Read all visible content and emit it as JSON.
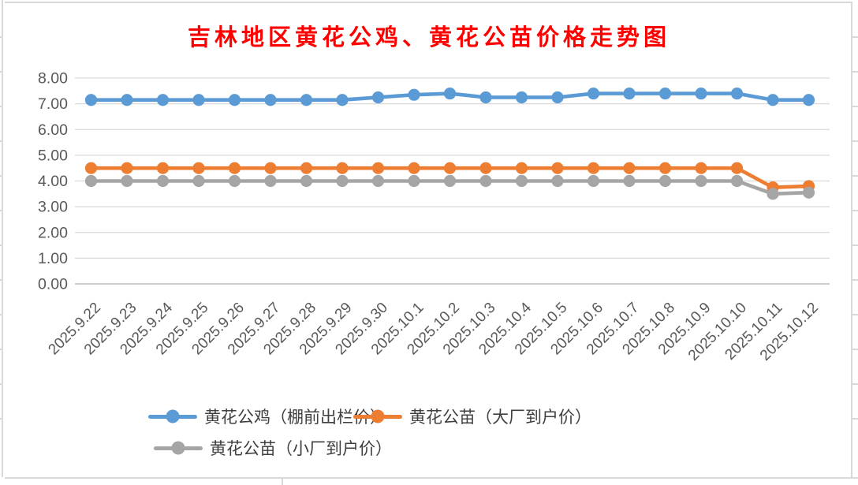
{
  "chart_data": {
    "type": "line",
    "title": "吉林地区黄花公鸡、黄花公苗价格走势图",
    "title_color": "#FF0000",
    "categories": [
      "2025.9.22",
      "2025.9.23",
      "2025.9.24",
      "2025.9.25",
      "2025.9.26",
      "2025.9.27",
      "2025.9.28",
      "2025.9.29",
      "2025.9.30",
      "2025.10.1",
      "2025.10.2",
      "2025.10.3",
      "2025.10.4",
      "2025.10.5",
      "2025.10.6",
      "2025.10.7",
      "2025.10.8",
      "2025.10.9",
      "2025.10.10",
      "2025.10.11",
      "2025.10.12"
    ],
    "series": [
      {
        "name": "黄花公鸡（棚前出栏价）",
        "color": "#5B9BD5",
        "values": [
          7.15,
          7.15,
          7.15,
          7.15,
          7.15,
          7.15,
          7.15,
          7.15,
          7.25,
          7.35,
          7.4,
          7.25,
          7.25,
          7.25,
          7.4,
          7.4,
          7.4,
          7.4,
          7.4,
          7.15,
          7.15
        ]
      },
      {
        "name": "黄花公苗（大厂到户价）",
        "color": "#ED7D31",
        "values": [
          4.5,
          4.5,
          4.5,
          4.5,
          4.5,
          4.5,
          4.5,
          4.5,
          4.5,
          4.5,
          4.5,
          4.5,
          4.5,
          4.5,
          4.5,
          4.5,
          4.5,
          4.5,
          4.5,
          3.75,
          3.8
        ]
      },
      {
        "name": "黄花公苗（小厂到户价）",
        "color": "#A5A5A5",
        "values": [
          4.0,
          4.0,
          4.0,
          4.0,
          4.0,
          4.0,
          4.0,
          4.0,
          4.0,
          4.0,
          4.0,
          4.0,
          4.0,
          4.0,
          4.0,
          4.0,
          4.0,
          4.0,
          4.0,
          3.5,
          3.55
        ]
      }
    ],
    "xlabel": "",
    "ylabel": "",
    "ylim": [
      0,
      8
    ],
    "ytick_step": 1,
    "ytick_labels": [
      "0.00",
      "1.00",
      "2.00",
      "3.00",
      "4.00",
      "5.00",
      "6.00",
      "7.00",
      "8.00"
    ],
    "grid": true,
    "gridline_color": "#d9d9d9",
    "axis_text_color": "#595959",
    "legend_position": "bottom",
    "x_label_rotation_deg": 45
  }
}
